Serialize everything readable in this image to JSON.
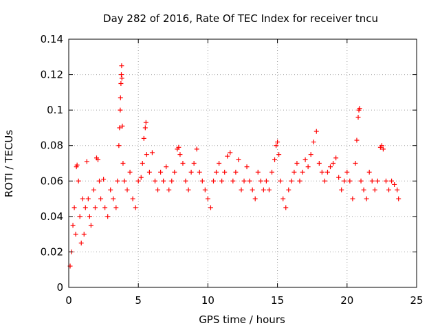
{
  "chart_data": {
    "type": "scatter",
    "title": "Day 282 of 2016, Rate Of TEC Index for receiver tncu",
    "xlabel": "GPS time / hours",
    "ylabel": "ROTI / TECUs",
    "xlim": [
      0,
      25
    ],
    "ylim": [
      0,
      0.14
    ],
    "x_ticks": [
      0,
      5,
      10,
      15,
      20,
      25
    ],
    "x_tick_labels": [
      "0",
      "5",
      "10",
      "15",
      "20",
      "25"
    ],
    "y_ticks": [
      0,
      0.02,
      0.04,
      0.06,
      0.08,
      0.1,
      0.12,
      0.14
    ],
    "y_tick_labels": [
      "0",
      "0.02",
      "0.04",
      "0.06",
      "0.08",
      "0.1",
      "0.12",
      "0.14"
    ],
    "grid": true,
    "marker": "+",
    "color": "#ff0000",
    "series": [
      {
        "name": "ROTI",
        "points": [
          [
            0.1,
            0.012
          ],
          [
            0.2,
            0.02
          ],
          [
            0.3,
            0.035
          ],
          [
            0.4,
            0.045
          ],
          [
            0.5,
            0.03
          ],
          [
            0.55,
            0.068
          ],
          [
            0.6,
            0.069
          ],
          [
            0.7,
            0.06
          ],
          [
            0.8,
            0.04
          ],
          [
            0.9,
            0.025
          ],
          [
            1.0,
            0.05
          ],
          [
            1.1,
            0.03
          ],
          [
            1.2,
            0.045
          ],
          [
            1.3,
            0.071
          ],
          [
            1.4,
            0.05
          ],
          [
            1.5,
            0.04
          ],
          [
            1.6,
            0.035
          ],
          [
            1.8,
            0.055
          ],
          [
            1.9,
            0.045
          ],
          [
            2.0,
            0.073
          ],
          [
            2.1,
            0.072
          ],
          [
            2.2,
            0.06
          ],
          [
            2.3,
            0.05
          ],
          [
            2.5,
            0.061
          ],
          [
            2.6,
            0.045
          ],
          [
            2.8,
            0.04
          ],
          [
            3.0,
            0.055
          ],
          [
            3.2,
            0.05
          ],
          [
            3.4,
            0.045
          ],
          [
            3.5,
            0.06
          ],
          [
            3.6,
            0.08
          ],
          [
            3.65,
            0.09
          ],
          [
            3.7,
            0.1
          ],
          [
            3.72,
            0.107
          ],
          [
            3.75,
            0.115
          ],
          [
            3.78,
            0.12
          ],
          [
            3.8,
            0.125
          ],
          [
            3.82,
            0.118
          ],
          [
            3.85,
            0.091
          ],
          [
            3.9,
            0.07
          ],
          [
            4.0,
            0.06
          ],
          [
            4.2,
            0.055
          ],
          [
            4.4,
            0.065
          ],
          [
            4.6,
            0.05
          ],
          [
            4.8,
            0.045
          ],
          [
            5.0,
            0.06
          ],
          [
            5.2,
            0.062
          ],
          [
            5.3,
            0.07
          ],
          [
            5.4,
            0.084
          ],
          [
            5.5,
            0.09
          ],
          [
            5.55,
            0.093
          ],
          [
            5.6,
            0.075
          ],
          [
            5.8,
            0.065
          ],
          [
            6.0,
            0.076
          ],
          [
            6.2,
            0.06
          ],
          [
            6.4,
            0.055
          ],
          [
            6.6,
            0.065
          ],
          [
            6.8,
            0.06
          ],
          [
            7.0,
            0.068
          ],
          [
            7.2,
            0.055
          ],
          [
            7.4,
            0.06
          ],
          [
            7.6,
            0.065
          ],
          [
            7.8,
            0.078
          ],
          [
            7.9,
            0.079
          ],
          [
            8.0,
            0.075
          ],
          [
            8.2,
            0.07
          ],
          [
            8.4,
            0.06
          ],
          [
            8.6,
            0.055
          ],
          [
            8.8,
            0.065
          ],
          [
            9.0,
            0.07
          ],
          [
            9.2,
            0.078
          ],
          [
            9.4,
            0.065
          ],
          [
            9.6,
            0.06
          ],
          [
            9.8,
            0.055
          ],
          [
            10.0,
            0.05
          ],
          [
            10.2,
            0.045
          ],
          [
            10.4,
            0.06
          ],
          [
            10.6,
            0.065
          ],
          [
            10.8,
            0.07
          ],
          [
            11.0,
            0.06
          ],
          [
            11.2,
            0.065
          ],
          [
            11.4,
            0.074
          ],
          [
            11.6,
            0.076
          ],
          [
            11.8,
            0.06
          ],
          [
            12.0,
            0.065
          ],
          [
            12.2,
            0.072
          ],
          [
            12.4,
            0.055
          ],
          [
            12.6,
            0.06
          ],
          [
            12.8,
            0.068
          ],
          [
            13.0,
            0.06
          ],
          [
            13.2,
            0.055
          ],
          [
            13.4,
            0.05
          ],
          [
            13.6,
            0.065
          ],
          [
            13.8,
            0.06
          ],
          [
            14.0,
            0.055
          ],
          [
            14.2,
            0.06
          ],
          [
            14.4,
            0.055
          ],
          [
            14.6,
            0.065
          ],
          [
            14.8,
            0.072
          ],
          [
            14.9,
            0.08
          ],
          [
            15.0,
            0.082
          ],
          [
            15.1,
            0.075
          ],
          [
            15.2,
            0.06
          ],
          [
            15.4,
            0.05
          ],
          [
            15.6,
            0.045
          ],
          [
            15.8,
            0.055
          ],
          [
            16.0,
            0.06
          ],
          [
            16.2,
            0.065
          ],
          [
            16.4,
            0.07
          ],
          [
            16.6,
            0.06
          ],
          [
            16.8,
            0.065
          ],
          [
            17.0,
            0.072
          ],
          [
            17.2,
            0.068
          ],
          [
            17.4,
            0.075
          ],
          [
            17.6,
            0.082
          ],
          [
            17.8,
            0.088
          ],
          [
            18.0,
            0.07
          ],
          [
            18.2,
            0.065
          ],
          [
            18.4,
            0.06
          ],
          [
            18.6,
            0.065
          ],
          [
            18.8,
            0.068
          ],
          [
            19.0,
            0.07
          ],
          [
            19.2,
            0.073
          ],
          [
            19.4,
            0.062
          ],
          [
            19.6,
            0.055
          ],
          [
            19.8,
            0.06
          ],
          [
            20.0,
            0.065
          ],
          [
            20.2,
            0.06
          ],
          [
            20.4,
            0.05
          ],
          [
            20.6,
            0.07
          ],
          [
            20.7,
            0.083
          ],
          [
            20.8,
            0.096
          ],
          [
            20.85,
            0.1
          ],
          [
            20.9,
            0.101
          ],
          [
            21.0,
            0.06
          ],
          [
            21.2,
            0.055
          ],
          [
            21.4,
            0.05
          ],
          [
            21.6,
            0.065
          ],
          [
            21.8,
            0.06
          ],
          [
            22.0,
            0.055
          ],
          [
            22.2,
            0.06
          ],
          [
            22.4,
            0.079
          ],
          [
            22.5,
            0.08
          ],
          [
            22.6,
            0.078
          ],
          [
            22.8,
            0.06
          ],
          [
            23.0,
            0.055
          ],
          [
            23.2,
            0.06
          ],
          [
            23.4,
            0.058
          ],
          [
            23.6,
            0.055
          ],
          [
            23.7,
            0.05
          ]
        ]
      }
    ]
  }
}
